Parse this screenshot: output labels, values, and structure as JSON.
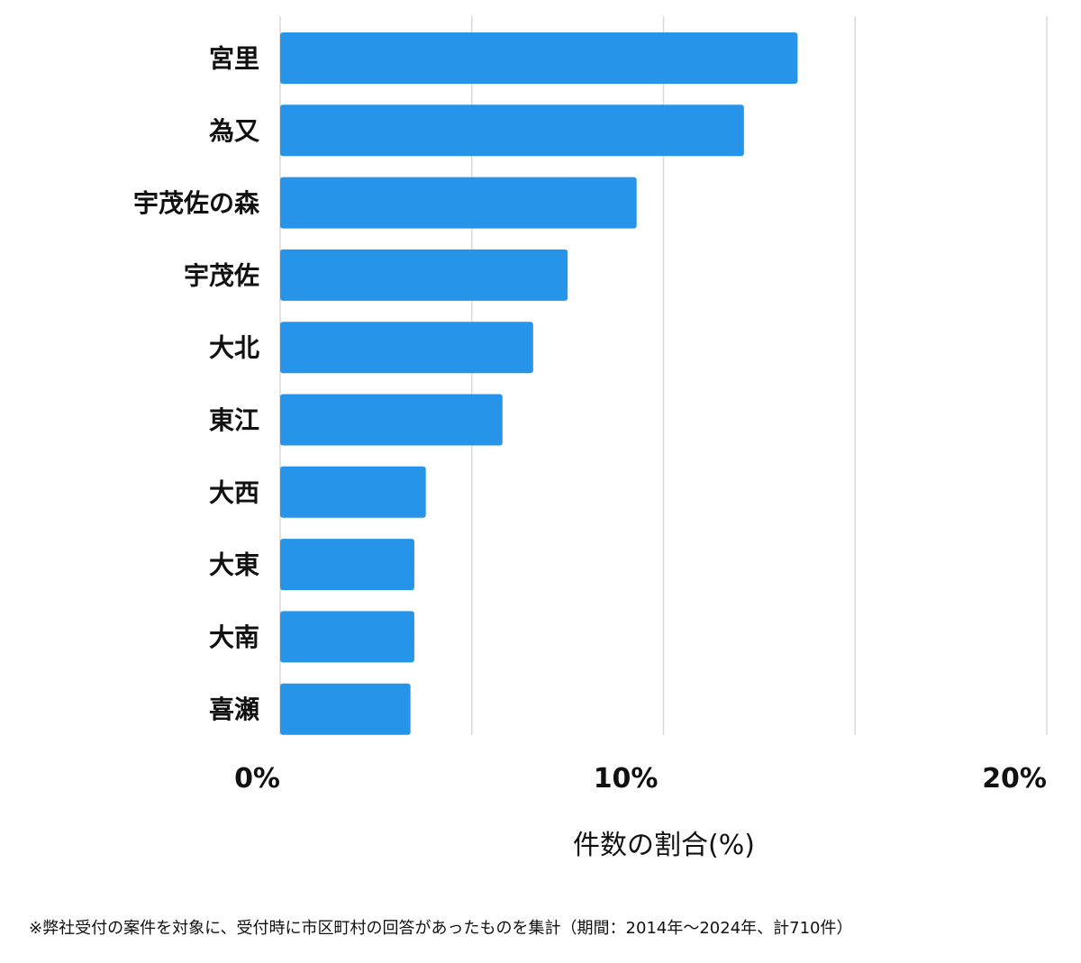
{
  "chart_data": {
    "type": "bar",
    "orientation": "horizontal",
    "categories": [
      "宮里",
      "為又",
      "宇茂佐の森",
      "宇茂佐",
      "大北",
      "東江",
      "大西",
      "大東",
      "大南",
      "喜瀬"
    ],
    "values": [
      13.5,
      12.1,
      9.3,
      7.5,
      6.6,
      5.8,
      3.8,
      3.5,
      3.5,
      3.4
    ],
    "xlim": [
      0,
      20
    ],
    "gridlines": [
      0,
      5,
      10,
      15,
      20
    ],
    "xticks": [
      {
        "value": 0,
        "label": "0%"
      },
      {
        "value": 10,
        "label": "10%"
      },
      {
        "value": 20,
        "label": "20%"
      }
    ],
    "xlabel": "件数の割合(%)",
    "title": "",
    "grid": true,
    "bar_color": "#2694e8",
    "grid_color": "#d9d9d9"
  },
  "footnote": "※弊社受付の案件を対象に、受付時に市区町村の回答があったものを集計（期間：2014年～2024年、計710件）"
}
